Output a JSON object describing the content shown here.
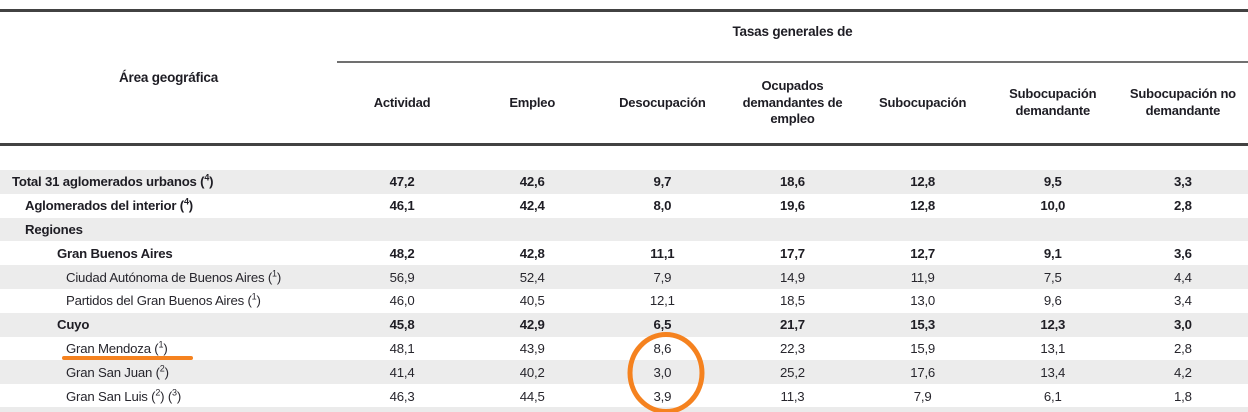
{
  "header": {
    "area_label": "Área geográfica",
    "group_label": "Tasas generales de",
    "columns": [
      "Actividad",
      "Empleo",
      "Desocupación",
      "Ocupados demandantes de empleo",
      "Subocupación",
      "Subocupación demandante",
      "Subocupación no demandante"
    ]
  },
  "rows": [
    {
      "label": "Total 31 aglomerados urbanos",
      "sups": [
        "4"
      ],
      "indent": 0,
      "bold": true,
      "values": [
        "47,2",
        "42,6",
        "9,7",
        "18,6",
        "12,8",
        "9,5",
        "3,3"
      ]
    },
    {
      "label": "Aglomerados del interior",
      "sups": [
        "4"
      ],
      "indent": 1,
      "bold": true,
      "values": [
        "46,1",
        "42,4",
        "8,0",
        "19,6",
        "12,8",
        "10,0",
        "2,8"
      ]
    },
    {
      "label": "Regiones",
      "sups": [],
      "indent": 1,
      "bold": true,
      "values": [
        "",
        "",
        "",
        "",
        "",
        "",
        ""
      ]
    },
    {
      "label": "Gran Buenos Aires",
      "sups": [],
      "indent": 2,
      "bold": true,
      "values": [
        "48,2",
        "42,8",
        "11,1",
        "17,7",
        "12,7",
        "9,1",
        "3,6"
      ]
    },
    {
      "label": "Ciudad Autónoma de Buenos Aires",
      "sups": [
        "1"
      ],
      "indent": 3,
      "bold": false,
      "values": [
        "56,9",
        "52,4",
        "7,9",
        "14,9",
        "11,9",
        "7,5",
        "4,4"
      ]
    },
    {
      "label": "Partidos del Gran Buenos Aires",
      "sups": [
        "1"
      ],
      "indent": 3,
      "bold": false,
      "values": [
        "46,0",
        "40,5",
        "12,1",
        "18,5",
        "13,0",
        "9,6",
        "3,4"
      ]
    },
    {
      "label": "Cuyo",
      "sups": [],
      "indent": 2,
      "bold": true,
      "values": [
        "45,8",
        "42,9",
        "6,5",
        "21,7",
        "15,3",
        "12,3",
        "3,0"
      ]
    },
    {
      "label": "Gran Mendoza",
      "sups": [
        "1"
      ],
      "indent": 3,
      "bold": false,
      "highlight_underline": true,
      "values": [
        "48,1",
        "43,9",
        "8,6",
        "22,3",
        "15,9",
        "13,1",
        "2,8"
      ]
    },
    {
      "label": "Gran San Juan",
      "sups": [
        "2"
      ],
      "indent": 3,
      "bold": false,
      "values": [
        "41,4",
        "40,2",
        "3,0",
        "25,2",
        "17,6",
        "13,4",
        "4,2"
      ]
    },
    {
      "label": "Gran San Luis",
      "sups": [
        "2",
        "3"
      ],
      "indent": 3,
      "bold": false,
      "values": [
        "46,3",
        "44,5",
        "3,9",
        "11,3",
        "7,9",
        "6,1",
        "1,8"
      ]
    }
  ],
  "annotations": {
    "underline": {
      "target_row": "Gran Mendoza",
      "color": "#f5821f"
    },
    "ellipse": {
      "column": "Desocupación",
      "circled_values": [
        "8,6",
        "3,0",
        "3,9"
      ],
      "color": "#f5821f"
    }
  },
  "colors": {
    "zebra_stripe": "#ececec",
    "rule_dark": "#424242",
    "rule_light": "#707070",
    "text": "#27262d",
    "annotation_orange": "#f5821f"
  }
}
